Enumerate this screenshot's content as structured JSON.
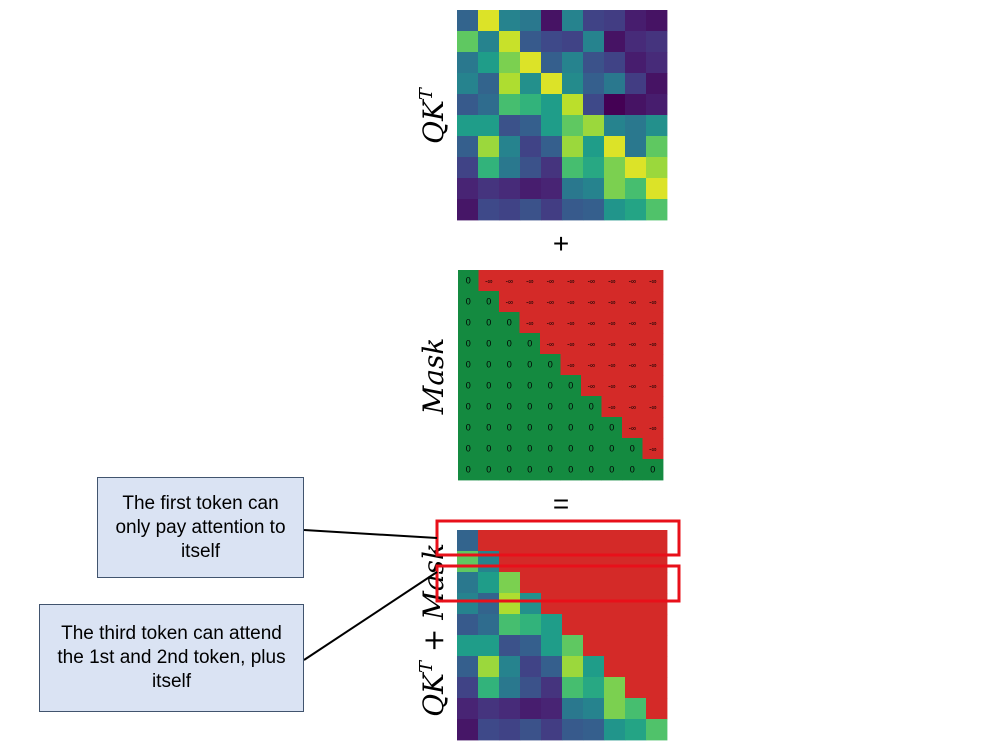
{
  "labels": {
    "qkt": "QK",
    "qkt_sup": "T",
    "mask": "Mask",
    "combined": "QK",
    "combined_sup": "T",
    "combined_rest": " + Mask",
    "plus": "+",
    "equals": "="
  },
  "mask_values": {
    "zero": "0",
    "neg_inf": "-∞"
  },
  "callouts": {
    "first": "The first token can only pay attention to itself",
    "third": "The third token can attend the 1st and 2nd token, plus itself"
  },
  "colors": {
    "mask_allowed": "#148a40",
    "mask_blocked": "#d42a28",
    "callout_fill": "#dae3f3",
    "callout_border": "#41546e",
    "highlight_box": "#e8101a"
  },
  "qkt_matrix": [
    [
      0.32,
      0.95,
      0.45,
      0.4,
      0.05,
      0.45,
      0.2,
      0.18,
      0.08,
      0.05
    ],
    [
      0.75,
      0.45,
      0.92,
      0.28,
      0.22,
      0.2,
      0.45,
      0.05,
      0.12,
      0.15
    ],
    [
      0.4,
      0.55,
      0.8,
      0.95,
      0.3,
      0.45,
      0.25,
      0.2,
      0.08,
      0.12
    ],
    [
      0.45,
      0.32,
      0.88,
      0.5,
      0.95,
      0.48,
      0.3,
      0.4,
      0.18,
      0.05
    ],
    [
      0.28,
      0.35,
      0.7,
      0.65,
      0.55,
      0.9,
      0.22,
      0.0,
      0.05,
      0.08
    ],
    [
      0.55,
      0.55,
      0.25,
      0.3,
      0.55,
      0.75,
      0.85,
      0.45,
      0.4,
      0.5
    ],
    [
      0.3,
      0.85,
      0.45,
      0.2,
      0.3,
      0.85,
      0.55,
      0.95,
      0.4,
      0.75
    ],
    [
      0.2,
      0.65,
      0.4,
      0.25,
      0.15,
      0.7,
      0.6,
      0.8,
      0.95,
      0.85
    ],
    [
      0.1,
      0.15,
      0.12,
      0.08,
      0.1,
      0.4,
      0.45,
      0.8,
      0.7,
      0.95
    ],
    [
      0.06,
      0.22,
      0.2,
      0.25,
      0.18,
      0.28,
      0.3,
      0.52,
      0.58,
      0.72
    ]
  ]
}
